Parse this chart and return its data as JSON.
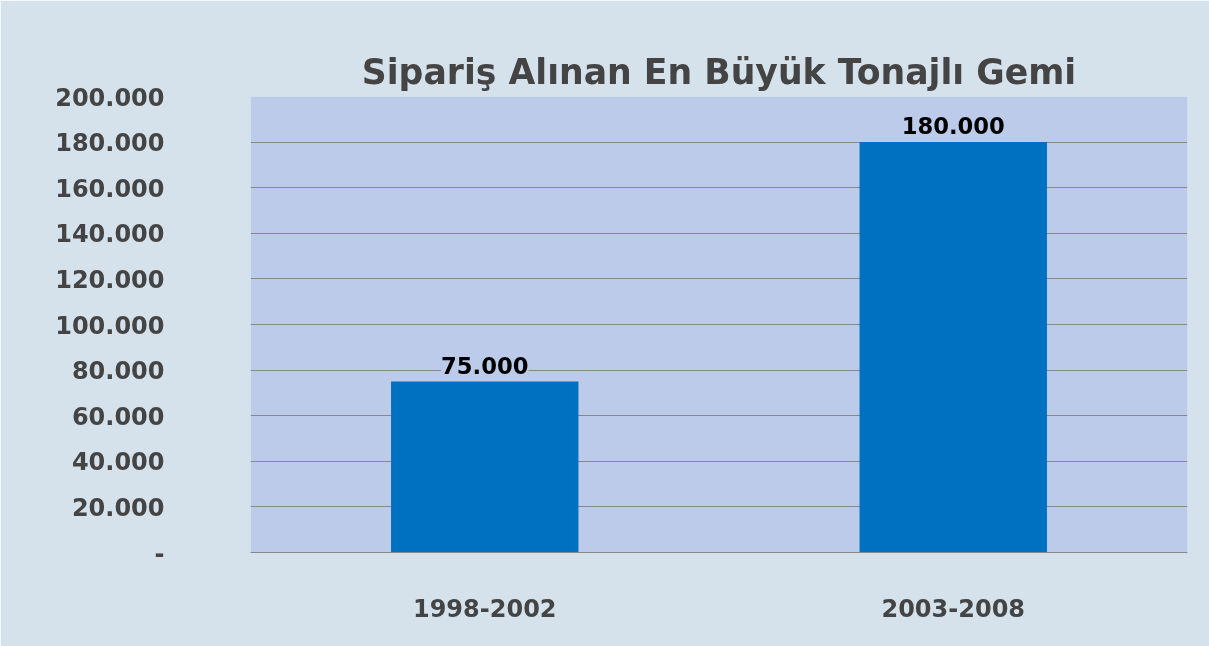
{
  "chart_data": {
    "type": "bar",
    "title": "Sipariş Alınan En Büyük Tonajlı Gemi",
    "categories": [
      "1998-2002",
      "2003-2008"
    ],
    "values": [
      75000,
      180000
    ],
    "value_labels": [
      "75.000",
      "180.000"
    ],
    "color": "#0070c0",
    "ylim": [
      0,
      200000
    ],
    "yticks": [
      {
        "value": 0,
        "label": "-"
      },
      {
        "value": 20000,
        "label": "20.000"
      },
      {
        "value": 40000,
        "label": "40.000"
      },
      {
        "value": 60000,
        "label": "60.000"
      },
      {
        "value": 80000,
        "label": "80.000"
      },
      {
        "value": 100000,
        "label": "100.000"
      },
      {
        "value": 120000,
        "label": "120.000"
      },
      {
        "value": 140000,
        "label": "140.000"
      },
      {
        "value": 160000,
        "label": "160.000"
      },
      {
        "value": 180000,
        "label": "180.000"
      },
      {
        "value": 200000,
        "label": "200.000"
      }
    ],
    "grid": "y"
  }
}
